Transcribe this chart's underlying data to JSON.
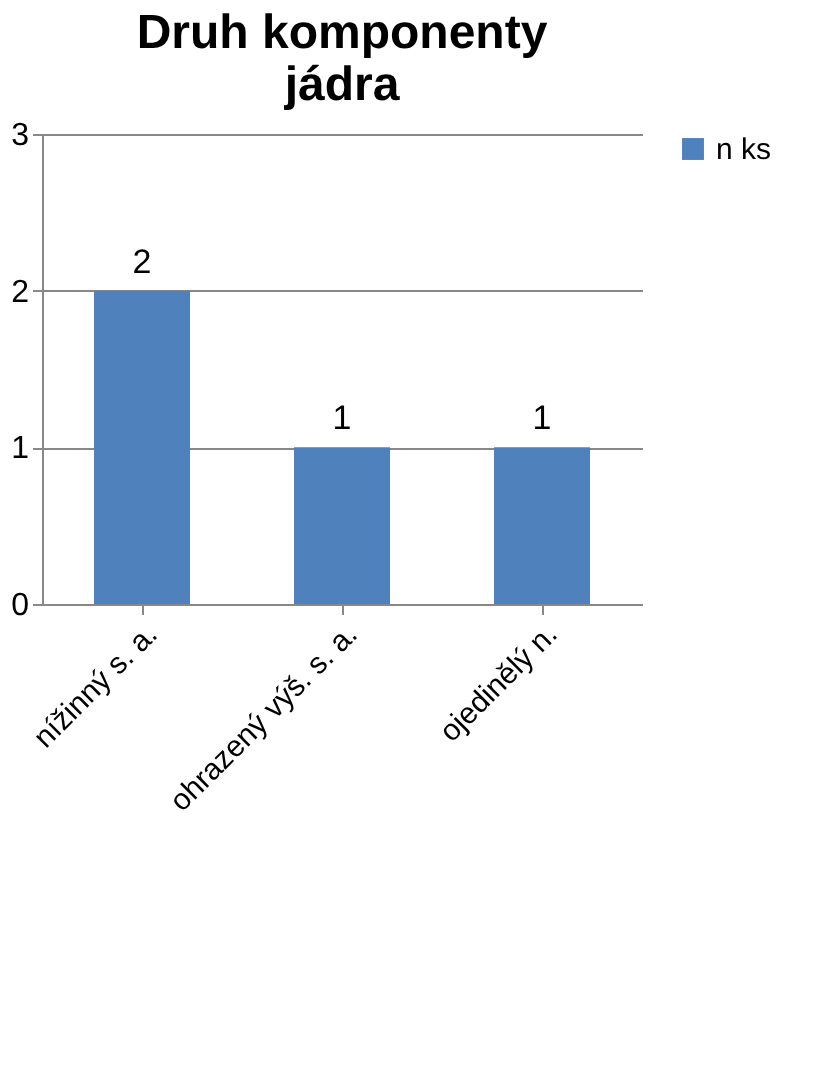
{
  "chart_data": {
    "type": "bar",
    "title": "Druh komponenty jádra",
    "categories": [
      "nížinný s. a.",
      "ohrazený výš. s. a.",
      "ojedinělý n."
    ],
    "series": [
      {
        "name": "n ks",
        "color": "#4f81bd",
        "values": [
          2,
          1,
          1
        ]
      }
    ],
    "ylim": [
      0,
      3
    ],
    "yticks": [
      0,
      1,
      2,
      3
    ],
    "grid": "y",
    "legend": "top right",
    "data_labels": true
  }
}
